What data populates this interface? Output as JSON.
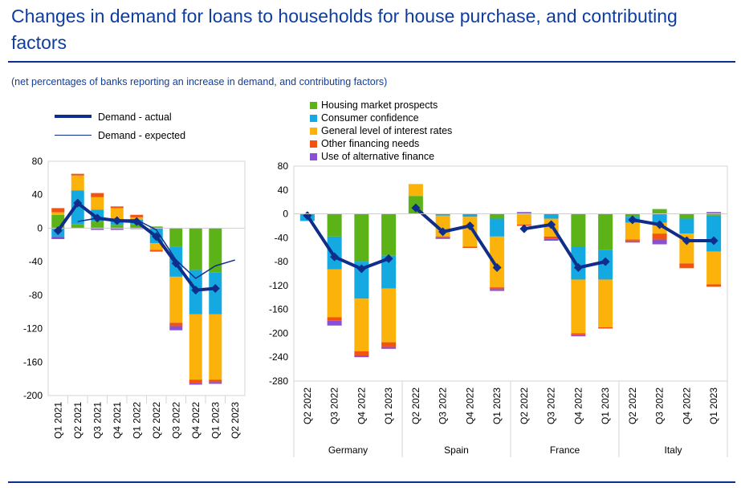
{
  "title": "Changes in demand for loans to households for house purchase, and contributing factors",
  "subtitle": "(net percentages of banks reporting an increase in demand, and contributing factors)",
  "colors": {
    "housing": "#5bb317",
    "consumer": "#14a9e0",
    "interest": "#fbb20b",
    "other": "#f2540f",
    "alternative": "#8a4fd2",
    "actual": "#0f2d8a",
    "expected": "#0f2d8a"
  },
  "chart_data": [
    {
      "type": "bar",
      "stacked": true,
      "categories": [
        "Q1 2021",
        "Q2 2021",
        "Q3 2021",
        "Q4 2021",
        "Q1 2022",
        "Q2 2022",
        "Q3 2022",
        "Q4 2022",
        "Q1 2023",
        "Q2 2023"
      ],
      "ylim": [
        -200,
        80
      ],
      "yticks": [
        80,
        40,
        0,
        -40,
        -80,
        -120,
        -160,
        -200
      ],
      "series": [
        {
          "name": "Housing market prospects",
          "color_key": "housing",
          "values": [
            16,
            5,
            8,
            4,
            5,
            2,
            -22,
            -50,
            -53,
            null
          ]
        },
        {
          "name": "Consumer confidence",
          "color_key": "consumer",
          "values": [
            -10,
            40,
            14,
            6,
            5,
            -18,
            -36,
            -53,
            -50,
            null
          ]
        },
        {
          "name": "General level of interest rates",
          "color_key": "interest",
          "values": [
            3,
            18,
            15,
            14,
            3,
            -8,
            -55,
            -78,
            -78,
            null
          ]
        },
        {
          "name": "Other financing needs",
          "color_key": "other",
          "values": [
            5,
            2,
            5,
            2,
            3,
            -2,
            -4,
            -4,
            -3,
            null
          ]
        },
        {
          "name": "Use of alternative finance",
          "color_key": "alternative",
          "values": [
            -3,
            0,
            -2,
            -2,
            -1,
            0,
            -5,
            -2,
            -2,
            null
          ]
        }
      ],
      "lines": [
        {
          "name": "Demand - actual",
          "values": [
            -3,
            30,
            12,
            9,
            8,
            -10,
            -42,
            -74,
            -72,
            null
          ]
        },
        {
          "name": "Demand - expected",
          "values": [
            null,
            8,
            12,
            10,
            10,
            -2,
            -38,
            -60,
            -45,
            -38
          ]
        }
      ]
    },
    {
      "type": "bar",
      "stacked": true,
      "groups": [
        "Germany",
        "Spain",
        "France",
        "Italy"
      ],
      "categories": [
        "Q2 2022",
        "Q3 2022",
        "Q4 2022",
        "Q1 2023"
      ],
      "ylim": [
        -280,
        80
      ],
      "yticks": [
        80,
        40,
        0,
        -40,
        -80,
        -120,
        -160,
        -200,
        -240,
        -280
      ],
      "series": [
        {
          "name": "Housing market prospects",
          "color_key": "housing",
          "values": {
            "Germany": [
              0,
              -38,
              -80,
              -70
            ],
            "Spain": [
              30,
              0,
              0,
              -8
            ],
            "France": [
              0,
              0,
              -55,
              -60
            ],
            "Italy": [
              -5,
              8,
              -8,
              -3
            ]
          }
        },
        {
          "name": "Consumer confidence",
          "color_key": "consumer",
          "values": {
            "Germany": [
              -12,
              -55,
              -62,
              -55
            ],
            "Spain": [
              0,
              -3,
              -5,
              -30
            ],
            "France": [
              0,
              -8,
              -55,
              -50
            ],
            "Italy": [
              -10,
              -15,
              -25,
              -60
            ]
          }
        },
        {
          "name": "General level of interest rates",
          "color_key": "interest",
          "values": {
            "Germany": [
              0,
              -80,
              -88,
              -90
            ],
            "Spain": [
              20,
              -35,
              -50,
              -85
            ],
            "France": [
              -18,
              -30,
              -90,
              -80
            ],
            "Italy": [
              -28,
              -18,
              -50,
              -55
            ]
          }
        },
        {
          "name": "Other financing needs",
          "color_key": "other",
          "values": {
            "Germany": [
              0,
              -6,
              -7,
              -8
            ],
            "Spain": [
              0,
              -2,
              -2,
              -3
            ],
            "France": [
              -2,
              -4,
              -3,
              -2
            ],
            "Italy": [
              -3,
              -10,
              -8,
              -4
            ]
          }
        },
        {
          "name": "Use of alternative finance",
          "color_key": "alternative",
          "values": {
            "Germany": [
              0,
              -8,
              -3,
              -3
            ],
            "Spain": [
              0,
              -2,
              0,
              -3
            ],
            "France": [
              3,
              -3,
              -2,
              0
            ],
            "Italy": [
              -2,
              -8,
              0,
              3
            ]
          }
        }
      ],
      "lines": [
        {
          "name": "Demand - actual",
          "values": {
            "Germany": [
              -3,
              -72,
              -92,
              -75
            ],
            "Spain": [
              10,
              -30,
              -20,
              -90
            ],
            "France": [
              -25,
              -18,
              -90,
              -80
            ],
            "Italy": [
              -10,
              -18,
              -45,
              -45
            ]
          }
        }
      ]
    }
  ]
}
